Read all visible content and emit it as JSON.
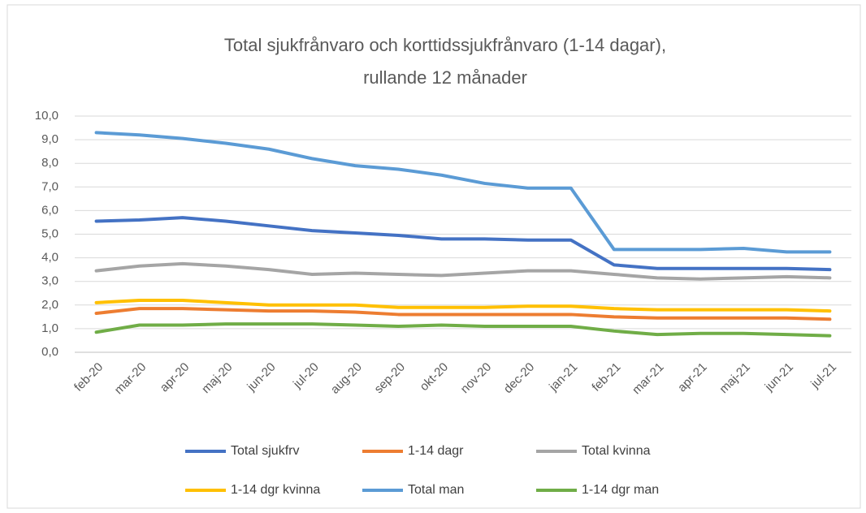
{
  "chart_data": {
    "type": "line",
    "title": [
      "Total sjukfrånvaro och korttidssjukfrånvaro (1-14 dagar),",
      "rullande 12 månader"
    ],
    "categories": [
      "feb-20",
      "mar-20",
      "apr-20",
      "maj-20",
      "jun-20",
      "jul-20",
      "aug-20",
      "sep-20",
      "okt-20",
      "nov-20",
      "dec-20",
      "jan-21",
      "feb-21",
      "mar-21",
      "apr-21",
      "maj-21",
      "jun-21",
      "jul-21"
    ],
    "series": [
      {
        "name": "Total sjukfrv",
        "color": "#4472c4",
        "values": [
          5.55,
          5.6,
          5.7,
          5.55,
          5.35,
          5.15,
          5.05,
          4.95,
          4.8,
          4.8,
          4.75,
          4.75,
          3.7,
          3.55,
          3.55,
          3.55,
          3.55,
          3.5
        ]
      },
      {
        "name": "1-14 dagr",
        "color": "#ed7d31",
        "values": [
          1.65,
          1.85,
          1.85,
          1.8,
          1.75,
          1.75,
          1.7,
          1.6,
          1.6,
          1.6,
          1.6,
          1.6,
          1.5,
          1.45,
          1.45,
          1.45,
          1.45,
          1.4
        ]
      },
      {
        "name": "Total kvinna",
        "color": "#a5a5a5",
        "values": [
          3.45,
          3.65,
          3.75,
          3.65,
          3.5,
          3.3,
          3.35,
          3.3,
          3.25,
          3.35,
          3.45,
          3.45,
          3.3,
          3.15,
          3.1,
          3.15,
          3.2,
          3.15
        ]
      },
      {
        "name": "1-14 dgr kvinna",
        "color": "#ffc000",
        "values": [
          2.1,
          2.2,
          2.2,
          2.1,
          2.0,
          2.0,
          2.0,
          1.9,
          1.9,
          1.9,
          1.95,
          1.95,
          1.85,
          1.8,
          1.8,
          1.8,
          1.8,
          1.75
        ]
      },
      {
        "name": "Total man",
        "color": "#5b9bd5",
        "values": [
          9.3,
          9.2,
          9.05,
          8.85,
          8.6,
          8.2,
          7.9,
          7.75,
          7.5,
          7.15,
          6.95,
          6.95,
          4.35,
          4.35,
          4.35,
          4.4,
          4.25,
          4.25
        ]
      },
      {
        "name": "1-14 dgr man",
        "color": "#70ad47",
        "values": [
          0.85,
          1.15,
          1.15,
          1.2,
          1.2,
          1.2,
          1.15,
          1.1,
          1.15,
          1.1,
          1.1,
          1.1,
          0.9,
          0.75,
          0.8,
          0.8,
          0.75,
          0.7
        ]
      }
    ],
    "ylim": [
      0,
      10
    ],
    "yticks": [
      {
        "value": 0,
        "label": "0,0"
      },
      {
        "value": 1,
        "label": "1,0"
      },
      {
        "value": 2,
        "label": "2,0"
      },
      {
        "value": 3,
        "label": "3,0"
      },
      {
        "value": 4,
        "label": "4,0"
      },
      {
        "value": 5,
        "label": "5,0"
      },
      {
        "value": 6,
        "label": "6,0"
      },
      {
        "value": 7,
        "label": "7,0"
      },
      {
        "value": 8,
        "label": "8,0"
      },
      {
        "value": 9,
        "label": "9,0"
      },
      {
        "value": 10,
        "label": "10,0"
      }
    ],
    "grid": true
  }
}
